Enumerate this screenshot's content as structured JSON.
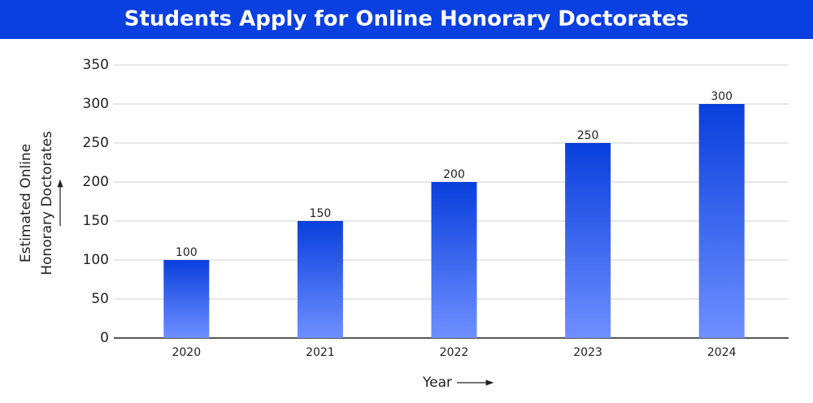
{
  "chart_data": {
    "type": "bar",
    "title": "Students Apply for Online Honorary Doctorates",
    "ylabel": [
      "Estimated Online",
      "Honorary Doctorates"
    ],
    "xlabel": "Year",
    "categories": [
      "2020",
      "2021",
      "2022",
      "2023",
      "2024"
    ],
    "values": [
      100,
      150,
      200,
      250,
      300
    ],
    "color": [
      "#0a3fdc",
      "#6e8fff"
    ],
    "ylim": [
      0,
      350
    ],
    "yticks": [
      0,
      50,
      100,
      150,
      200,
      250,
      300,
      350
    ],
    "grid": true
  }
}
